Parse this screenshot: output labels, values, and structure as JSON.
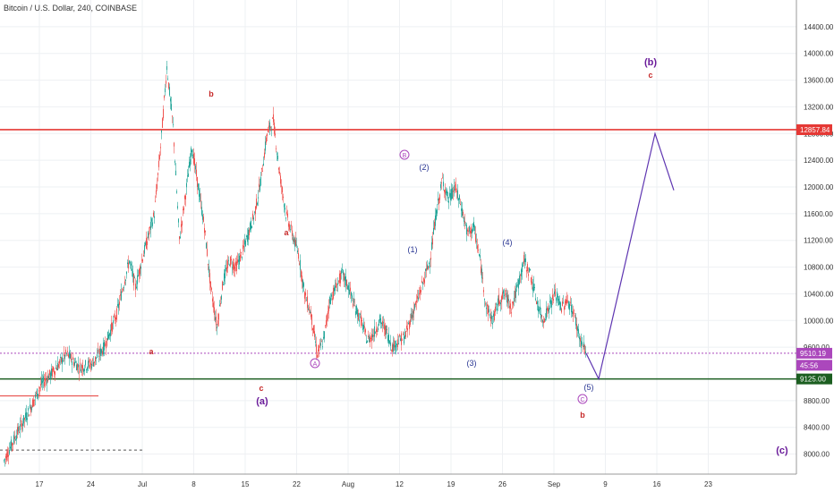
{
  "title": "Bitcoin / U.S. Dollar, 240, COINBASE",
  "chart_data": {
    "type": "candlestick",
    "title": "Bitcoin / U.S. Dollar, 240, COINBASE",
    "x_ticks": [
      "17",
      "24",
      "Jul",
      "8",
      "15",
      "22",
      "Aug",
      "12",
      "19",
      "26",
      "Sep",
      "9",
      "16",
      "23"
    ],
    "y_ticks": [
      "14400.00",
      "14000.00",
      "13600.00",
      "13200.00",
      "12800.00",
      "12400.00",
      "12000.00",
      "11600.00",
      "11200.00",
      "10800.00",
      "10400.00",
      "10000.00",
      "9600.00",
      "8800.00",
      "8400.00",
      "8000.00"
    ],
    "ylim": [
      7700,
      14800
    ],
    "price_axis_side": "right",
    "price_badges": [
      {
        "label": "12857.84",
        "y": 12857.84,
        "color": "#e53935"
      },
      {
        "label": "9510.19",
        "y": 9510.19,
        "color": "#ab47bc"
      },
      {
        "label": "45:56",
        "y": 9330,
        "color": "#ab47bc"
      },
      {
        "label": "9125.00",
        "y": 9125,
        "color": "#1b5e20"
      }
    ],
    "horizontal_lines": [
      {
        "y": 12857.84,
        "color": "#e53935",
        "style": "solid"
      },
      {
        "y": 9510.19,
        "color": "#ab47bc",
        "style": "dotted"
      },
      {
        "y": 9125,
        "color": "#1b5e20",
        "style": "solid"
      }
    ],
    "candle_path": [
      [
        0,
        7900
      ],
      [
        2,
        8300
      ],
      [
        4,
        8650
      ],
      [
        6,
        9050
      ],
      [
        8,
        9250
      ],
      [
        10,
        9500
      ],
      [
        12,
        9300
      ],
      [
        14,
        9350
      ],
      [
        16,
        9600
      ],
      [
        18,
        10100
      ],
      [
        20,
        10900
      ],
      [
        21,
        10500
      ],
      [
        22,
        10900
      ],
      [
        24,
        11600
      ],
      [
        25,
        12600
      ],
      [
        26,
        13800
      ],
      [
        27,
        12900
      ],
      [
        28,
        11200
      ],
      [
        29,
        11900
      ],
      [
        30,
        12600
      ],
      [
        31,
        12000
      ],
      [
        32,
        11400
      ],
      [
        33,
        10500
      ],
      [
        34,
        9900
      ],
      [
        35,
        10600
      ],
      [
        36,
        10900
      ],
      [
        37,
        10800
      ],
      [
        38,
        11000
      ],
      [
        39,
        11300
      ],
      [
        40,
        11600
      ],
      [
        41,
        12100
      ],
      [
        42,
        12800
      ],
      [
        43,
        13000
      ],
      [
        44,
        12200
      ],
      [
        45,
        11600
      ],
      [
        46,
        11300
      ],
      [
        47,
        11000
      ],
      [
        48,
        10400
      ],
      [
        49,
        10100
      ],
      [
        50,
        9500
      ],
      [
        51,
        9700
      ],
      [
        52,
        10300
      ],
      [
        53,
        10500
      ],
      [
        54,
        10700
      ],
      [
        55,
        10500
      ],
      [
        56,
        10200
      ],
      [
        57,
        10000
      ],
      [
        58,
        9700
      ],
      [
        59,
        9800
      ],
      [
        60,
        10000
      ],
      [
        61,
        9850
      ],
      [
        62,
        9600
      ],
      [
        63,
        9700
      ],
      [
        64,
        9750
      ],
      [
        65,
        10050
      ],
      [
        66,
        10300
      ],
      [
        67,
        10600
      ],
      [
        68,
        10900
      ],
      [
        69,
        11600
      ],
      [
        70,
        12100
      ],
      [
        71,
        11800
      ],
      [
        72,
        12000
      ],
      [
        73,
        11700
      ],
      [
        74,
        11300
      ],
      [
        75,
        11400
      ],
      [
        76,
        10900
      ],
      [
        77,
        10200
      ],
      [
        78,
        10000
      ],
      [
        79,
        10300
      ],
      [
        80,
        10400
      ],
      [
        81,
        10200
      ],
      [
        82,
        10500
      ],
      [
        83,
        10900
      ],
      [
        84,
        10700
      ],
      [
        85,
        10300
      ],
      [
        86,
        10000
      ],
      [
        87,
        10200
      ],
      [
        88,
        10400
      ],
      [
        89,
        10200
      ],
      [
        90,
        10300
      ],
      [
        91,
        10100
      ],
      [
        92,
        9700
      ],
      [
        93,
        9510
      ]
    ],
    "projection_path": [
      [
        93,
        9510
      ],
      [
        95,
        9125
      ],
      [
        104,
        12800
      ],
      [
        107,
        11950
      ]
    ],
    "wave_labels": [
      {
        "text": "b",
        "color": "#c62828"
      },
      {
        "text": "a",
        "color": "#c62828"
      },
      {
        "text": "a",
        "color": "#c62828"
      },
      {
        "text": "c",
        "color": "#c62828"
      },
      {
        "text": "(a)",
        "color": "#6a1b9a"
      },
      {
        "text": "A",
        "color": "#ab47bc",
        "circled": true
      },
      {
        "text": "B",
        "color": "#ab47bc",
        "circled": true
      },
      {
        "text": "(2)",
        "color": "#283593"
      },
      {
        "text": "(1)",
        "color": "#283593"
      },
      {
        "text": "(3)",
        "color": "#283593"
      },
      {
        "text": "(4)",
        "color": "#283593"
      },
      {
        "text": "(5)",
        "color": "#283593"
      },
      {
        "text": "C",
        "color": "#ab47bc",
        "circled": true
      },
      {
        "text": "b",
        "color": "#c62828"
      },
      {
        "text": "(b)",
        "color": "#6a1b9a"
      },
      {
        "text": "c",
        "color": "#c62828"
      },
      {
        "text": "(c)",
        "color": "#6a1b9a"
      }
    ],
    "colors": {
      "up": "#26a69a",
      "down": "#ef5350",
      "projection": "#5e35b1",
      "grid": "#eef0f3"
    }
  }
}
